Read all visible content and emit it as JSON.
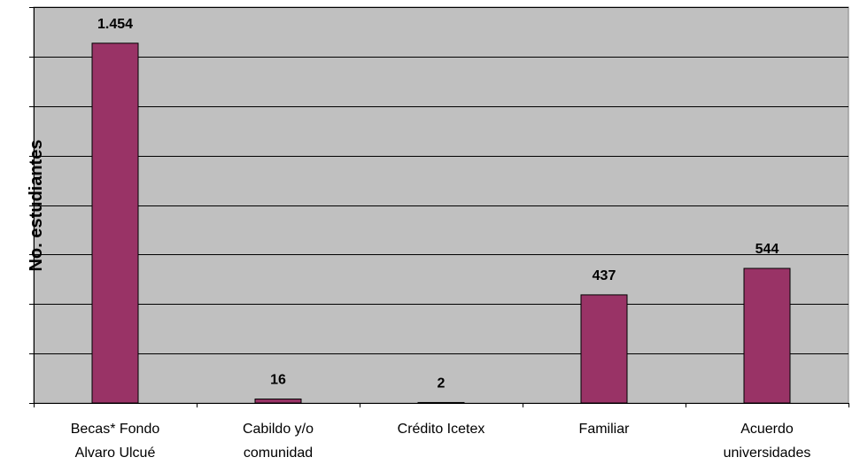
{
  "chart_data": {
    "type": "bar",
    "categories": [
      [
        "Becas* Fondo",
        "Alvaro Ulcué"
      ],
      [
        "Cabildo y/o",
        "comunidad"
      ],
      [
        "Crédito Icetex"
      ],
      [
        "Familiar"
      ],
      [
        "Acuerdo",
        "universidades"
      ]
    ],
    "values": [
      1454,
      16,
      2,
      437,
      544
    ],
    "value_labels": [
      "1.454",
      "16",
      "2",
      "437",
      "544"
    ],
    "ylabel": "No. estudiantes",
    "ylim": [
      0,
      1600
    ],
    "ytick_step": 200,
    "grid": true,
    "show_y_tick_labels": false,
    "colors": {
      "bar": "#993366",
      "plot_background": "#c0c0c0"
    }
  }
}
